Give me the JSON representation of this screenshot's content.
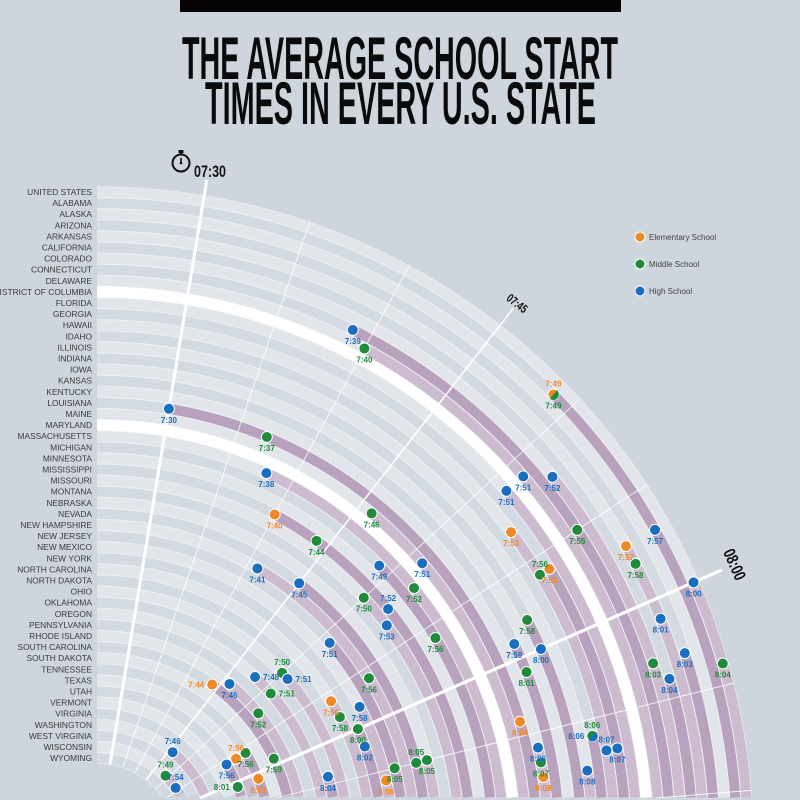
{
  "title": {
    "line1": "THE AVERAGE SCHOOL START",
    "line2": "TIMES IN EVERY U.S. STATE"
  },
  "legend": [
    {
      "label": "Elementary School",
      "color": "#ee8a25"
    },
    {
      "label": "Middle School",
      "color": "#1f8b3b"
    },
    {
      "label": "High School",
      "color": "#1a6ec0"
    }
  ],
  "colors": {
    "background": "#cfd5dd",
    "ring_light": "#e2e6eb",
    "ring_dark": "#d4dae1",
    "band_light": "#cdbcd0",
    "band_dark": "#b9a2be",
    "highlight_ring": "#ffffff"
  },
  "chart_data": {
    "type": "radial-scatter",
    "title": "THE AVERAGE SCHOOL START TIMES IN EVERY U.S. STATE",
    "axis": {
      "range": [
        "7:30",
        "8:10"
      ],
      "tick_labels": [
        "07:30",
        "07:45",
        "08:00"
      ],
      "gridline_interval_minutes": 5,
      "icon": "stopwatch-icon"
    },
    "highlighted_rows": [
      "DISTRICT OF COLUMBIA",
      "MARYLAND"
    ],
    "categories": [
      "UNITED STATES",
      "ALABAMA",
      "ALASKA",
      "ARIZONA",
      "ARKANSAS",
      "CALIFORNIA",
      "COLORADO",
      "CONNECTICUT",
      "DELAWARE",
      "DISTRICT OF COLUMBIA",
      "FLORIDA",
      "GEORGIA",
      "HAWAII",
      "IDAHO",
      "ILLINOIS",
      "INDIANA",
      "IOWA",
      "KANSAS",
      "KENTUCKY",
      "LOUISIANA",
      "MAINE",
      "MARYLAND",
      "MASSACHUSETTS",
      "MICHIGAN",
      "MINNESOTA",
      "MISSISSIPPI",
      "MISSOURI",
      "MONTANA",
      "NEBRASKA",
      "NEVADA",
      "NEW HAMPSHIRE",
      "NEW JERSEY",
      "NEW MEXICO",
      "NEW YORK",
      "NORTH CAROLINA",
      "NORTH DAKOTA",
      "OHIO",
      "OKLAHOMA",
      "OREGON",
      "PENNSYLVANIA",
      "RHODE ISLAND",
      "SOUTH CAROLINA",
      "SOUTH DAKOTA",
      "TENNESSEE",
      "TEXAS",
      "UTAH",
      "VERMONT",
      "VIRGINIA",
      "WASHINGTON",
      "WEST VIRGINIA",
      "WISCONSIN",
      "WYOMING"
    ],
    "series": [
      {
        "name": "Elementary School",
        "color": "#ee8a25",
        "points": [
          {
            "state": "ALABAMA",
            "time": "7:49"
          },
          {
            "state": "ARKANSAS",
            "time": "7:57"
          },
          {
            "state": "GEORGIA",
            "time": "7:56"
          },
          {
            "state": "HAWAII",
            "time": "7:53"
          },
          {
            "state": "KENTUCKY",
            "time": "8:08"
          },
          {
            "state": "LOUISIANA",
            "time": "8:04"
          },
          {
            "state": "MISSISSIPPI",
            "time": "7:40"
          },
          {
            "state": "NEW MEXICO",
            "time": "8:06"
          },
          {
            "state": "NORTH CAROLINA",
            "time": "7:56"
          },
          {
            "state": "SOUTH CAROLINA",
            "time": "7:44",
            "label_side": "left"
          },
          {
            "state": "TENNESSEE",
            "time": "8:01"
          },
          {
            "state": "TEXAS",
            "time": "7:56",
            "label_side": "above"
          }
        ]
      },
      {
        "name": "Middle School",
        "color": "#1f8b3b",
        "points": [
          {
            "state": "UNITED STATES",
            "time": "8:04"
          },
          {
            "state": "ALABAMA",
            "time": "7:49"
          },
          {
            "state": "ARKANSAS",
            "time": "7:58"
          },
          {
            "state": "COLORADO",
            "time": "8:03"
          },
          {
            "state": "CONNECTICUT",
            "time": "7:55"
          },
          {
            "state": "DELAWARE",
            "time": "7:40"
          },
          {
            "state": "HAWAII",
            "time": "7:56"
          },
          {
            "state": "IDAHO",
            "time": "8:06"
          },
          {
            "state": "INDIANA",
            "time": "7:58"
          },
          {
            "state": "KANSAS",
            "time": "8:01"
          },
          {
            "state": "KENTUCKY",
            "time": "8:07"
          },
          {
            "state": "LOUISIANA",
            "time": "7:37"
          },
          {
            "state": "MAINE",
            "time": "7:46"
          },
          {
            "state": "MASSACHUSETTS",
            "time": "7:52"
          },
          {
            "state": "MICHIGAN",
            "time": "7:56"
          },
          {
            "state": "MISSISSIPPI",
            "time": "7:44"
          },
          {
            "state": "MISSOURI",
            "time": "7:50"
          },
          {
            "state": "NEBRASKA",
            "time": "8:05"
          },
          {
            "state": "NEVADA",
            "time": "8:05"
          },
          {
            "state": "NEW HAMPSHIRE",
            "time": "7:56"
          },
          {
            "state": "NEW JERSEY",
            "time": "8:05"
          },
          {
            "state": "NEW YORK",
            "time": "8:00"
          },
          {
            "state": "NORTH CAROLINA",
            "time": "7:58"
          },
          {
            "state": "OHIO",
            "time": "7:50",
            "label_side": "above"
          },
          {
            "state": "OREGON",
            "time": "7:51",
            "label_side": "right"
          },
          {
            "state": "RHODE ISLAND",
            "time": "7:52"
          },
          {
            "state": "SOUTH CAROLINA",
            "time": "7:59"
          },
          {
            "state": "TENNESSEE",
            "time": "7:56",
            "label_side": "above"
          },
          {
            "state": "UTAH",
            "time": "8:01",
            "label_side": "left"
          },
          {
            "state": "WISCONSIN",
            "time": "7:49",
            "label_side": "above"
          }
        ]
      },
      {
        "name": "High School",
        "color": "#1a6ec0",
        "points": [
          {
            "state": "UNITED STATES",
            "time": "8:00"
          },
          {
            "state": "ALABAMA",
            "time": "7:57"
          },
          {
            "state": "ARIZONA",
            "time": "8:03"
          },
          {
            "state": "ARKANSAS",
            "time": "8:01"
          },
          {
            "state": "CALIFORNIA",
            "time": "8:04"
          },
          {
            "state": "COLORADO",
            "time": "7:52"
          },
          {
            "state": "CONNECTICUT",
            "time": "7:39"
          },
          {
            "state": "DELAWARE",
            "time": "7:51"
          },
          {
            "state": "FLORIDA",
            "time": "7:51"
          },
          {
            "state": "GEORGIA",
            "time": "8:07"
          },
          {
            "state": "HAWAII",
            "time": "8:07"
          },
          {
            "state": "IDAHO",
            "time": "8:06"
          },
          {
            "state": "ILLINOIS",
            "time": "8:08"
          },
          {
            "state": "INDIANA",
            "time": "8:00"
          },
          {
            "state": "KANSAS",
            "time": "7:59"
          },
          {
            "state": "KENTUCKY",
            "time": "8:06"
          },
          {
            "state": "LOUISIANA",
            "time": "7:30"
          },
          {
            "state": "MAINE",
            "time": "7:51"
          },
          {
            "state": "MASSACHUSETTS",
            "time": "7:38"
          },
          {
            "state": "MICHIGAN",
            "time": "7:49"
          },
          {
            "state": "MISSISSIPPI",
            "time": "7:52",
            "label_side": "above"
          },
          {
            "state": "MISSOURI",
            "time": "7:53"
          },
          {
            "state": "NEVADA",
            "time": "7:45"
          },
          {
            "state": "NEW HAMPSHIRE",
            "time": "7:41"
          },
          {
            "state": "NEW JERSEY",
            "time": "7:51"
          },
          {
            "state": "NEW MEXICO",
            "time": "7:58"
          },
          {
            "state": "NEW YORK",
            "time": "8:02"
          },
          {
            "state": "OHIO",
            "time": "7:51"
          },
          {
            "state": "OKLAHOMA",
            "time": "8:04"
          },
          {
            "state": "OREGON",
            "time": "7:48",
            "label_side": "right"
          },
          {
            "state": "RHODE ISLAND",
            "time": "7:46"
          },
          {
            "state": "UTAH",
            "time": "7:56"
          },
          {
            "state": "WASHINGTON",
            "time": "7:46",
            "label_side": "above"
          },
          {
            "state": "WISCONSIN",
            "time": "7:54",
            "label_side": "above"
          }
        ]
      }
    ]
  }
}
